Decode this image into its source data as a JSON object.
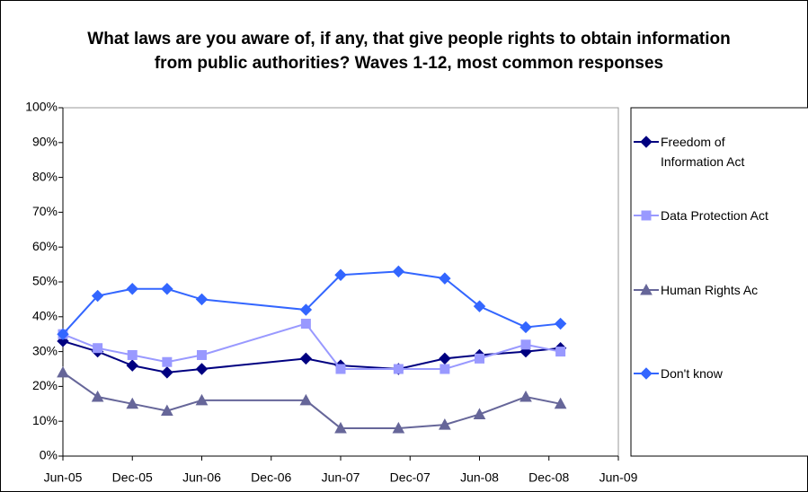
{
  "chart_data": {
    "type": "line",
    "title": "What laws are you aware of, if any, that give people rights to obtain information from public authorities? Waves 1-12, most common responses",
    "x": [
      "Jun-05",
      "Sep-05",
      "Dec-05",
      "Mar-06",
      "Jun-06",
      "Mar-07",
      "Jun-07",
      "Nov-07",
      "Mar-08",
      "Jun-08",
      "Oct-08",
      "Jan-09"
    ],
    "xlim": [
      "Jun-05",
      "Jun-09"
    ],
    "xticks": [
      "Jun-05",
      "Dec-05",
      "Jun-06",
      "Dec-06",
      "Jun-07",
      "Dec-07",
      "Jun-08",
      "Dec-08",
      "Jun-09"
    ],
    "ylim": [
      0,
      100
    ],
    "yticks": [
      {
        "value": 0,
        "label": "0%"
      },
      {
        "value": 10,
        "label": "10%"
      },
      {
        "value": 20,
        "label": "20%"
      },
      {
        "value": 30,
        "label": "30%"
      },
      {
        "value": 40,
        "label": "40%"
      },
      {
        "value": 50,
        "label": "50%"
      },
      {
        "value": 60,
        "label": "60%"
      },
      {
        "value": 70,
        "label": "70%"
      },
      {
        "value": 80,
        "label": "80%"
      },
      {
        "value": 90,
        "label": "90%"
      },
      {
        "value": 100,
        "label": "100%"
      }
    ],
    "grid": false,
    "legend": "right",
    "series": [
      {
        "name": "Freedom of Information Act",
        "color": "#000080",
        "marker": "diamond",
        "values": [
          33,
          30,
          26,
          24,
          25,
          28,
          26,
          25,
          28,
          29,
          30,
          31
        ]
      },
      {
        "name": "Data Protection Act",
        "color": "#9999ff",
        "marker": "square",
        "values": [
          35,
          31,
          29,
          27,
          29,
          38,
          25,
          25,
          25,
          28,
          32,
          30
        ]
      },
      {
        "name": "Human Rights Ac",
        "color": "#666699",
        "marker": "triangle",
        "values": [
          24,
          17,
          15,
          13,
          16,
          16,
          8,
          8,
          9,
          12,
          17,
          15
        ]
      },
      {
        "name": "Don't know",
        "color": "#3366ff",
        "marker": "diamond",
        "values": [
          35,
          46,
          48,
          48,
          45,
          42,
          52,
          53,
          51,
          43,
          37,
          38
        ]
      }
    ]
  }
}
